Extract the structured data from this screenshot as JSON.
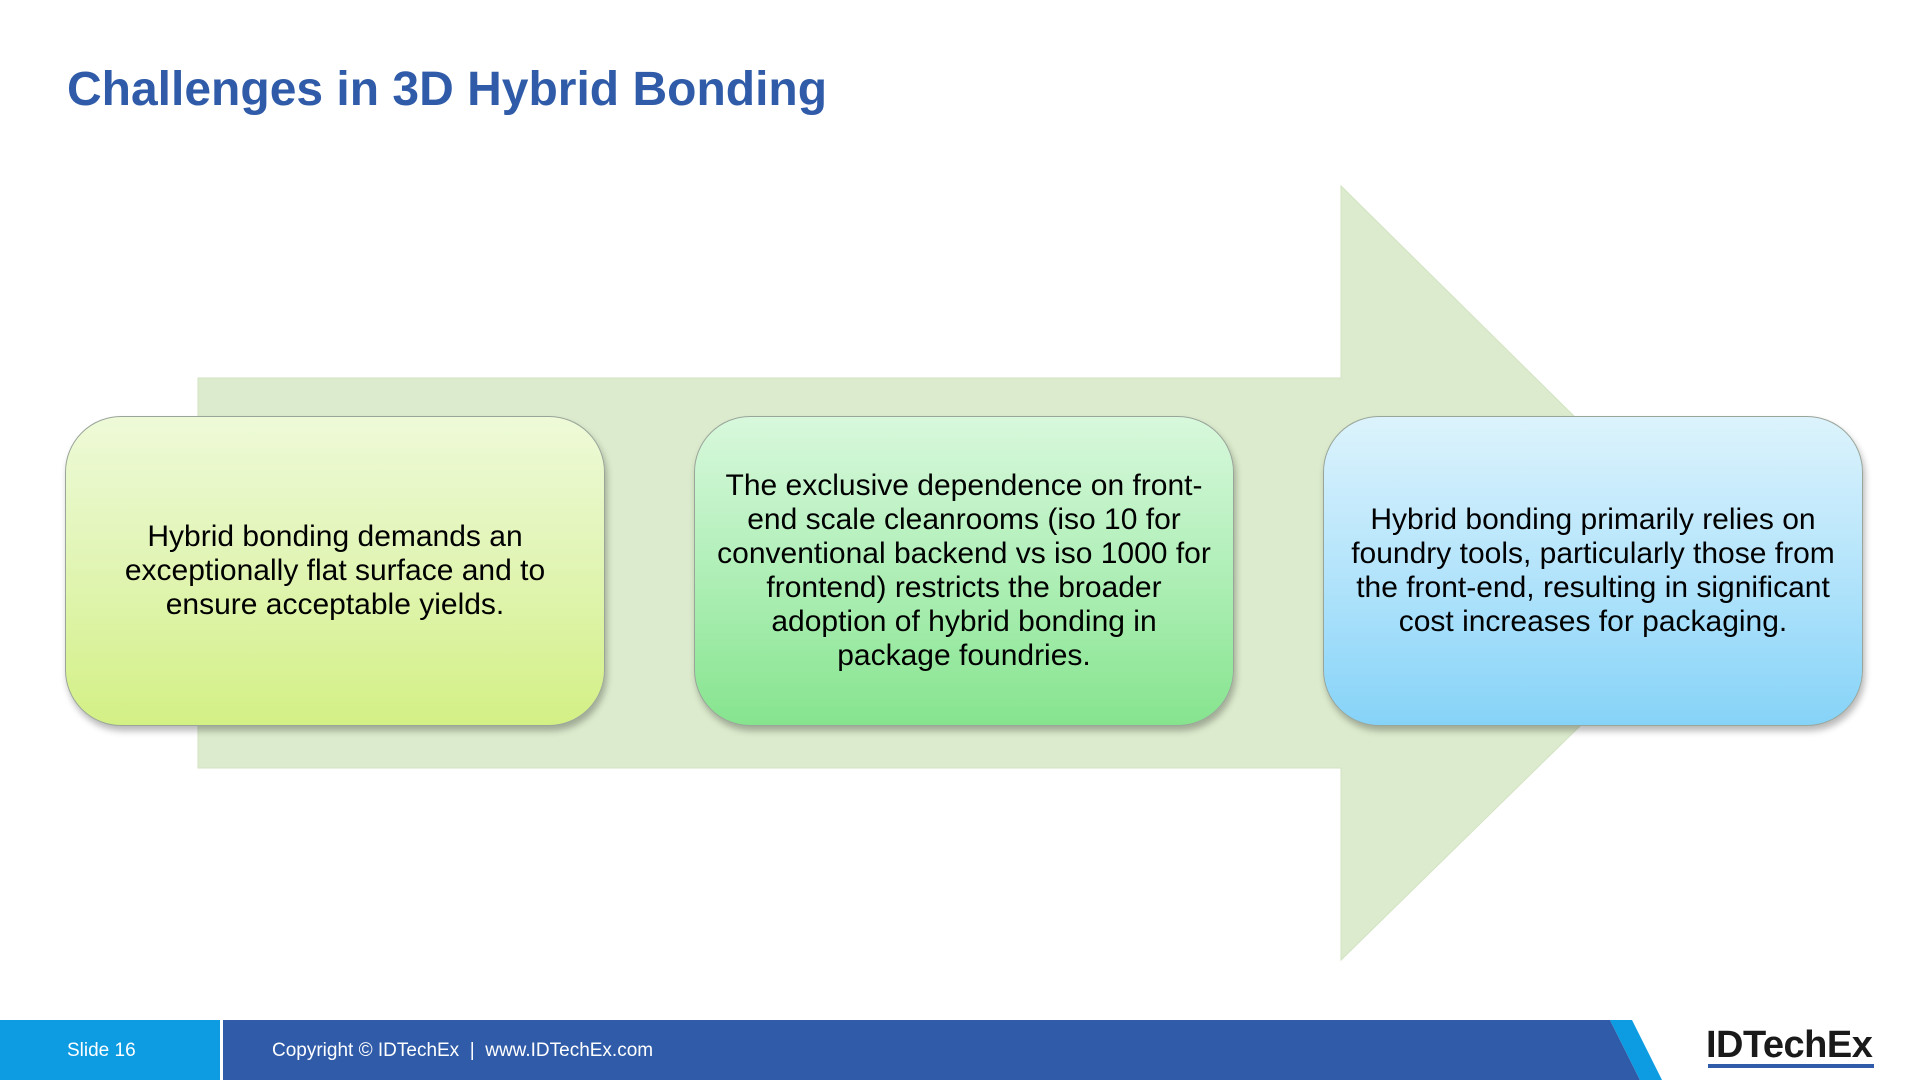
{
  "slide": {
    "title": "Challenges in 3D Hybrid Bonding"
  },
  "diagram": {
    "type": "process-arrow",
    "arrow_color": "#dcebcd",
    "steps": [
      {
        "text": "Hybrid bonding demands an exceptionally flat surface and to ensure acceptable yields.",
        "color": "#d3f085"
      },
      {
        "text": "The exclusive dependence on front-end scale cleanrooms (iso 10 for conventional backend vs iso 1000 for frontend) restricts the broader adoption of hybrid bonding in package foundries.",
        "color": "#86e48e"
      },
      {
        "text": "Hybrid bonding primarily relies on foundry tools, particularly those from the front-end, resulting in significant cost increases for packaging.",
        "color": "#86d3f8"
      }
    ]
  },
  "footer": {
    "slide_number": "Slide 16",
    "copyright": "Copyright © IDTechEx  |  www.IDTechEx.com",
    "logo": "IDTechEx",
    "colors": {
      "accent": "#0d9be2",
      "bar": "#2f5ba8"
    }
  }
}
